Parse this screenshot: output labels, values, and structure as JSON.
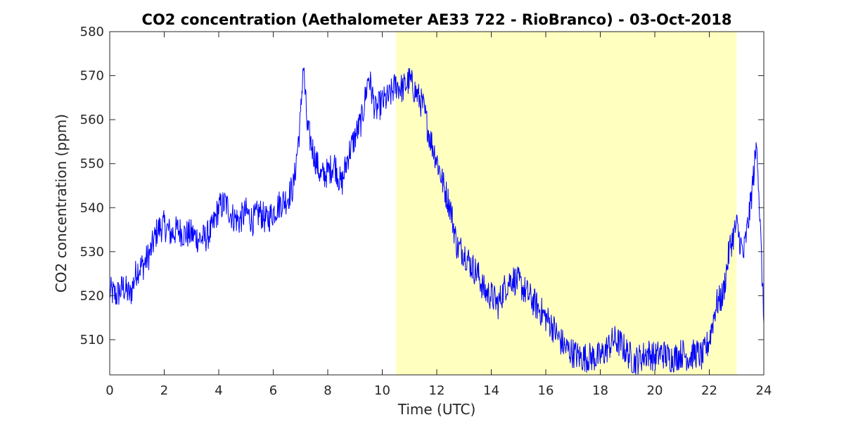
{
  "chart_data": {
    "type": "line",
    "title": "CO2 concentration (Aethalometer AE33 722 - RioBranco) - 03-Oct-2018",
    "xlabel": "Time (UTC)",
    "ylabel": "CO2 concentration (ppm)",
    "xlim": [
      0,
      24
    ],
    "ylim": [
      502,
      580
    ],
    "xticks": [
      0,
      2,
      4,
      6,
      8,
      10,
      12,
      14,
      16,
      18,
      20,
      22,
      24
    ],
    "yticks": [
      510,
      520,
      530,
      540,
      550,
      560,
      570,
      580
    ],
    "grid": false,
    "shaded_region": {
      "x_start": 10.5,
      "x_end": 23.0,
      "color": "#ffffbf"
    },
    "series": [
      {
        "color": "#0000ff",
        "x": [
          0,
          0.25,
          0.5,
          0.75,
          1.0,
          1.25,
          1.5,
          1.75,
          2.0,
          2.25,
          2.5,
          2.75,
          3.0,
          3.25,
          3.5,
          3.75,
          4.0,
          4.25,
          4.5,
          4.75,
          5.0,
          5.25,
          5.5,
          5.75,
          6.0,
          6.25,
          6.5,
          6.75,
          7.0,
          7.1,
          7.25,
          7.5,
          7.75,
          8.0,
          8.25,
          8.5,
          8.75,
          9.0,
          9.25,
          9.5,
          9.75,
          10.0,
          10.25,
          10.5,
          10.75,
          11.0,
          11.25,
          11.5,
          11.75,
          12.0,
          12.25,
          12.5,
          12.75,
          13.0,
          13.25,
          13.5,
          13.75,
          14.0,
          14.25,
          14.5,
          14.75,
          15.0,
          15.25,
          15.5,
          15.75,
          16.0,
          16.25,
          16.5,
          16.75,
          17.0,
          17.25,
          17.5,
          17.75,
          18.0,
          18.25,
          18.5,
          18.75,
          19.0,
          19.25,
          19.5,
          19.75,
          20.0,
          20.25,
          20.5,
          20.75,
          21.0,
          21.25,
          21.5,
          21.75,
          22.0,
          22.25,
          22.5,
          22.75,
          23.0,
          23.25,
          23.5,
          23.75,
          24.0
        ],
        "y": [
          521,
          520,
          522,
          520,
          526,
          527,
          530,
          535,
          536,
          534,
          535,
          534,
          534,
          533,
          533,
          535,
          540,
          541,
          538,
          537,
          539,
          537,
          539,
          537,
          539,
          541,
          542,
          545,
          560,
          573,
          558,
          552,
          547,
          548,
          550,
          545,
          552,
          556,
          560,
          570,
          562,
          564,
          565,
          568,
          567,
          569,
          566,
          563,
          556,
          551,
          545,
          540,
          531,
          530,
          527,
          525,
          521,
          520,
          518,
          522,
          524,
          523,
          521,
          519,
          517,
          515,
          513,
          510,
          508,
          507,
          506,
          506,
          506,
          506,
          508,
          510,
          509,
          507,
          505,
          506,
          507,
          506,
          507,
          506,
          506,
          507,
          506,
          507,
          506,
          510,
          518,
          520,
          531,
          536,
          529,
          540,
          555,
          514
        ]
      }
    ]
  }
}
